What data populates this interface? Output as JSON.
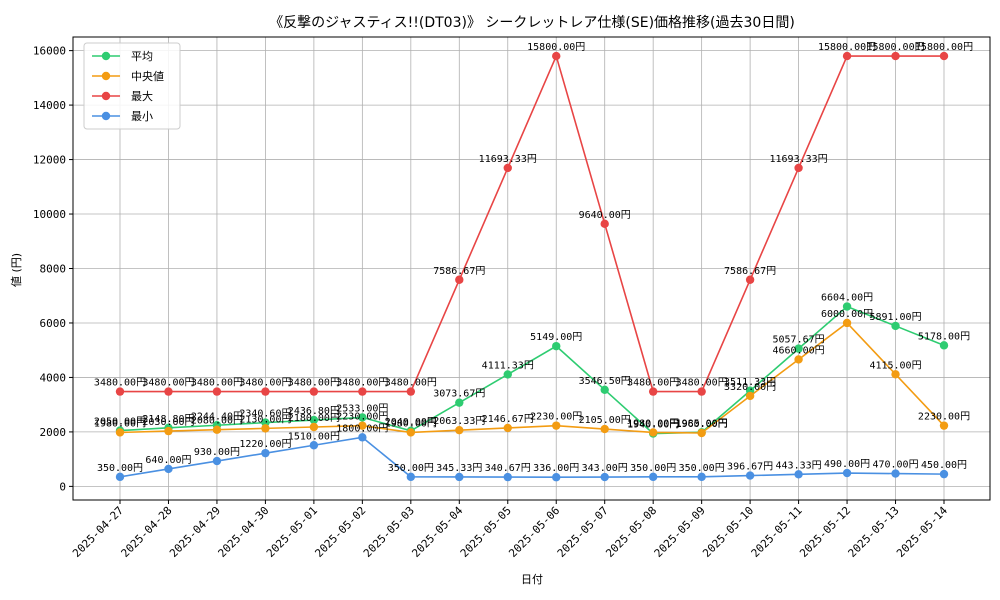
{
  "chart_data": {
    "type": "line",
    "title": "《反撃のジャスティス!!(DT03)》 シークレットレア仕様(SE)価格推移(過去30日間)",
    "xlabel": "日付",
    "ylabel": "値 (円)",
    "ylim": [
      -500,
      16500
    ],
    "yticks": [
      0,
      2000,
      4000,
      6000,
      8000,
      10000,
      12000,
      14000,
      16000
    ],
    "grid": true,
    "legend_position": "top-left",
    "value_suffix": "円",
    "categories": [
      "2025-04-27",
      "2025-04-28",
      "2025-04-29",
      "2025-04-30",
      "2025-05-01",
      "2025-05-02",
      "2025-05-03",
      "2025-05-04",
      "2025-05-05",
      "2025-05-06",
      "2025-05-07",
      "2025-05-08",
      "2025-05-09",
      "2025-05-10",
      "2025-05-11",
      "2025-05-12",
      "2025-05-13",
      "2025-05-14"
    ],
    "series": [
      {
        "name": "平均",
        "color": "#2ecc71",
        "values": [
          2050.0,
          2148.8,
          2244.4,
          2340.6,
          2436.8,
          2533.0,
          2040.0,
          3073.67,
          4111.33,
          5149.0,
          3546.5,
          1940.0,
          1985.0,
          3511.33,
          5057.67,
          6604.0,
          5891.0,
          5178.0
        ]
      },
      {
        "name": "中央値",
        "color": "#f39c12",
        "values": [
          1980.0,
          2030.0,
          2080.0,
          2130.0,
          2180.0,
          2230.0,
          1980.0,
          2063.33,
          2146.67,
          2230.0,
          2105.0,
          1980.0,
          1960.0,
          3320.0,
          4660.0,
          6000.0,
          4115.0,
          2230.0
        ]
      },
      {
        "name": "最大",
        "color": "#e84545",
        "values": [
          3480.0,
          3480.0,
          3480.0,
          3480.0,
          3480.0,
          3480.0,
          3480.0,
          7586.67,
          11693.33,
          15800.0,
          9640.0,
          3480.0,
          3480.0,
          7586.67,
          11693.33,
          15800.0,
          15800.0,
          15800.0
        ]
      },
      {
        "name": "最小",
        "color": "#4a90e2",
        "values": [
          350.0,
          640.0,
          930.0,
          1220.0,
          1510.0,
          1800.0,
          350.0,
          345.33,
          340.67,
          336.0,
          343.0,
          350.0,
          350.0,
          396.67,
          443.33,
          490.0,
          470.0,
          450.0
        ]
      }
    ]
  }
}
